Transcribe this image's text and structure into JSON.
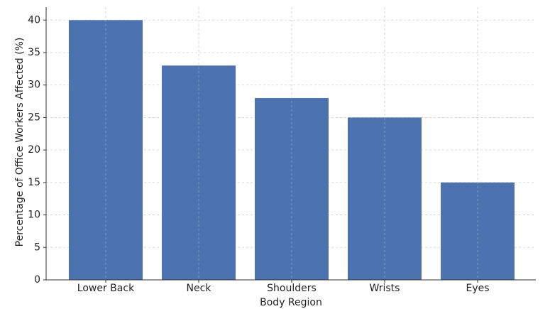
{
  "chart_data": {
    "type": "bar",
    "x_label": "Body Region",
    "y_label": "Percentage of Office Workers Affected (%)",
    "categories": [
      "Lower Back",
      "Neck",
      "Shoulders",
      "Wrists",
      "Eyes"
    ],
    "values": [
      40,
      33,
      28,
      25,
      15
    ],
    "color": "#4c72b0",
    "ylim": [
      0,
      42
    ],
    "yticks": [
      0,
      5,
      10,
      15,
      20,
      25,
      30,
      35,
      40
    ],
    "grid": true
  }
}
